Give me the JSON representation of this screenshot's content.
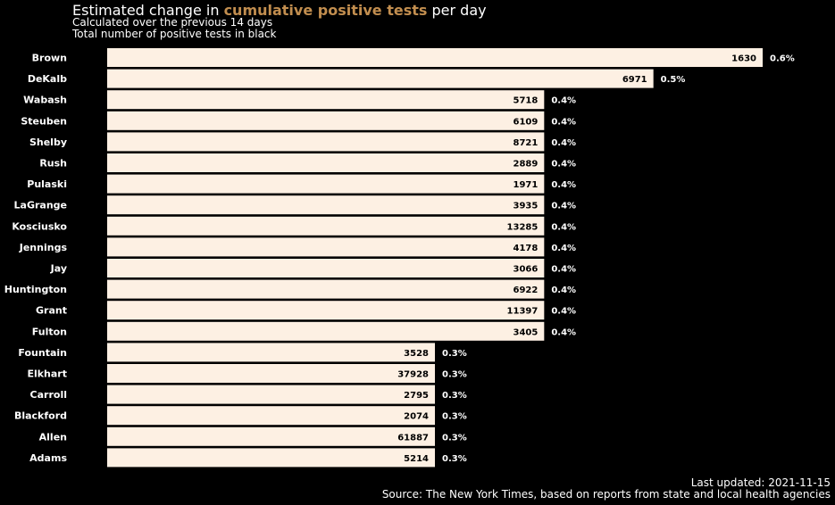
{
  "header": {
    "title_pre": "Estimated change in ",
    "title_highlight": "cumulative positive tests",
    "title_post": " per day",
    "subtitle_1": "Calculated over the previous 14 days",
    "subtitle_2": "Total number of positive tests in black"
  },
  "footer": {
    "updated": "Last updated: 2021-11-15",
    "source": "Source: The New York Times, based on reports from state and local health agencies"
  },
  "colors": {
    "background": "#000000",
    "bar": "#fdf0e3",
    "highlight": "#c28e4f",
    "text": "#ffffff",
    "bar_text": "#000000"
  },
  "chart_data": {
    "type": "bar",
    "orientation": "horizontal",
    "categories": [
      "Brown",
      "DeKalb",
      "Wabash",
      "Steuben",
      "Shelby",
      "Rush",
      "Pulaski",
      "LaGrange",
      "Kosciusko",
      "Jennings",
      "Jay",
      "Huntington",
      "Grant",
      "Fulton",
      "Fountain",
      "Elkhart",
      "Carroll",
      "Blackford",
      "Allen",
      "Adams"
    ],
    "values": [
      0.6,
      0.5,
      0.4,
      0.4,
      0.4,
      0.4,
      0.4,
      0.4,
      0.4,
      0.4,
      0.4,
      0.4,
      0.4,
      0.4,
      0.3,
      0.3,
      0.3,
      0.3,
      0.3,
      0.3
    ],
    "value_labels": [
      "0.6%",
      "0.5%",
      "0.4%",
      "0.4%",
      "0.4%",
      "0.4%",
      "0.4%",
      "0.4%",
      "0.4%",
      "0.4%",
      "0.4%",
      "0.4%",
      "0.4%",
      "0.4%",
      "0.3%",
      "0.3%",
      "0.3%",
      "0.3%",
      "0.3%",
      "0.3%"
    ],
    "totals": [
      "1630",
      "6971",
      "5718",
      "6109",
      "8721",
      "2889",
      "1971",
      "3935",
      "13285",
      "4178",
      "3066",
      "6922",
      "11397",
      "3405",
      "3528",
      "37928",
      "2795",
      "2074",
      "61887",
      "5214"
    ],
    "xlim": [
      0,
      0.6
    ]
  }
}
